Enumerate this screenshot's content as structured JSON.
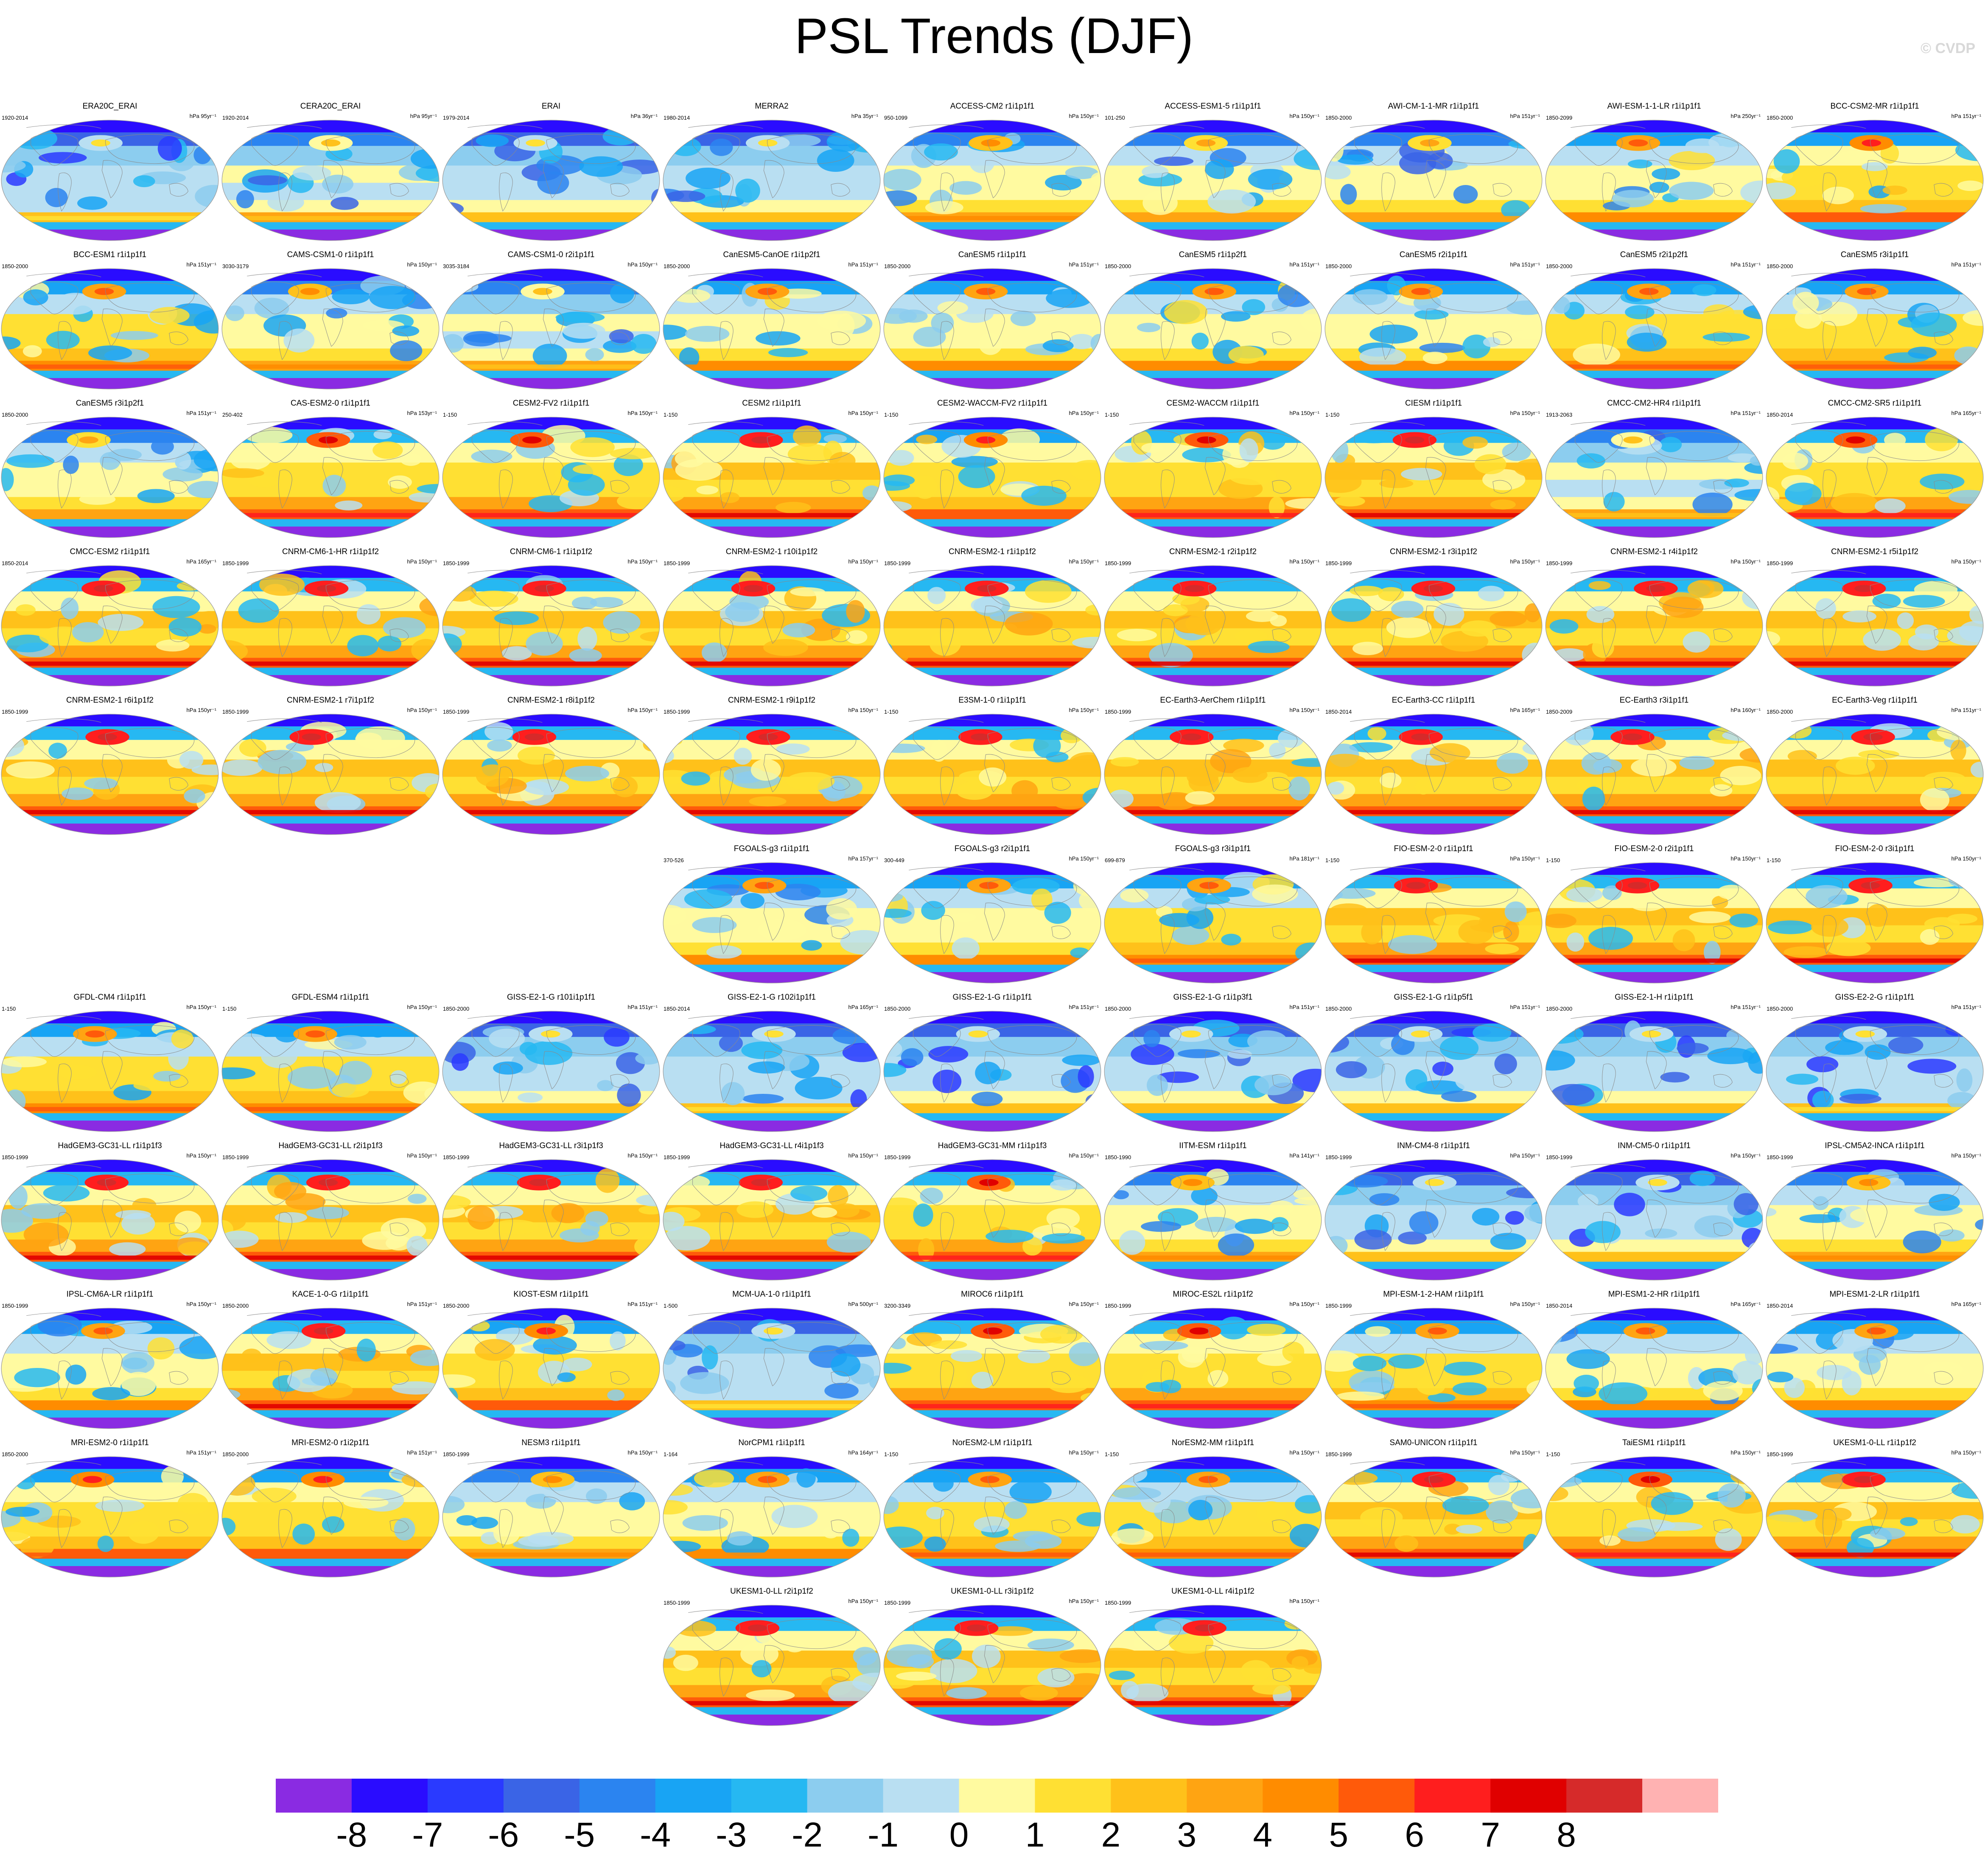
{
  "title": "PSL Trends (DJF)",
  "watermark": "© CVDP",
  "colorbar": {
    "colors": [
      "#8a2be2",
      "#2a0cff",
      "#2a3aff",
      "#3a64e6",
      "#2b84f0",
      "#18a4f4",
      "#26b8f2",
      "#8ccdef",
      "#b9dff2",
      "#fffaa0",
      "#ffe033",
      "#ffc11a",
      "#ffa412",
      "#ff8c00",
      "#ff5a0a",
      "#ff1e1e",
      "#e00000",
      "#d62a2a",
      "#ffb2b2"
    ],
    "ticks": [
      "-8",
      "-7",
      "-6",
      "-5",
      "-4",
      "-3",
      "-2",
      "-1",
      "0",
      "1",
      "2",
      "3",
      "4",
      "5",
      "6",
      "7",
      "8"
    ]
  },
  "rows": [
    [
      {
        "title": "ERA20C_ERAI",
        "period": "1920-2014",
        "units": "hPa 95yr⁻¹",
        "tint": -0.3
      },
      {
        "title": "CERA20C_ERAI",
        "period": "1920-2014",
        "units": "hPa 95yr⁻¹",
        "tint": -0.1
      },
      {
        "title": "ERAI",
        "period": "1979-2014",
        "units": "hPa 36yr⁻¹",
        "tint": -0.2
      },
      {
        "title": "MERRA2",
        "period": "1980-2014",
        "units": "hPa 35yr⁻¹",
        "tint": -0.2
      },
      {
        "title": "ACCESS-CM2 r1i1p1f1",
        "period": "950-1099",
        "units": "hPa 150yr⁻¹",
        "tint": 0.1
      },
      {
        "title": "ACCESS-ESM1-5 r1i1p1f1",
        "period": "101-250",
        "units": "hPa 150yr⁻¹",
        "tint": 0.0
      },
      {
        "title": "AWI-CM-1-1-MR r1i1p1f1",
        "period": "1850-2000",
        "units": "hPa 151yr⁻¹",
        "tint": 0.0
      },
      {
        "title": "AWI-ESM-1-1-LR r1i1p1f1",
        "period": "1850-2099",
        "units": "hPa 250yr⁻¹",
        "tint": 0.2
      },
      {
        "title": "BCC-CSM2-MR r1i1p1f1",
        "period": "1850-2000",
        "units": "hPa 151yr⁻¹",
        "tint": 0.4
      }
    ],
    [
      {
        "title": "BCC-ESM1 r1i1p1f1",
        "period": "1850-2000",
        "units": "hPa 151yr⁻¹",
        "tint": 0.3
      },
      {
        "title": "CAMS-CSM1-0 r1i1p1f1",
        "period": "3030-3179",
        "units": "hPa 150yr⁻¹",
        "tint": 0.1
      },
      {
        "title": "CAMS-CSM1-0 r2i1p1f1",
        "period": "3035-3184",
        "units": "hPa 150yr⁻¹",
        "tint": -0.1
      },
      {
        "title": "CanESM5-CanOE r1i1p2f1",
        "period": "1850-2000",
        "units": "hPa 151yr⁻¹",
        "tint": 0.2
      },
      {
        "title": "CanESM5 r1i1p1f1",
        "period": "1850-2000",
        "units": "hPa 151yr⁻¹",
        "tint": 0.2
      },
      {
        "title": "CanESM5 r1i1p2f1",
        "period": "1850-2000",
        "units": "hPa 151yr⁻¹",
        "tint": 0.2
      },
      {
        "title": "CanESM5 r2i1p1f1",
        "period": "1850-2000",
        "units": "hPa 151yr⁻¹",
        "tint": 0.2
      },
      {
        "title": "CanESM5 r2i1p2f1",
        "period": "1850-2000",
        "units": "hPa 151yr⁻¹",
        "tint": 0.3
      },
      {
        "title": "CanESM5 r3i1p1f1",
        "period": "1850-2000",
        "units": "hPa 151yr⁻¹",
        "tint": 0.3
      }
    ],
    [
      {
        "title": "CanESM5 r3i1p2f1",
        "period": "1850-2000",
        "units": "hPa 151yr⁻¹",
        "tint": 0.0
      },
      {
        "title": "CAS-ESM2-0 r1i1p1f1",
        "period": "250-402",
        "units": "hPa 153yr⁻¹",
        "tint": 0.5
      },
      {
        "title": "CESM2-FV2 r1i1p1f1",
        "period": "1-150",
        "units": "hPa 150yr⁻¹",
        "tint": 0.5
      },
      {
        "title": "CESM2 r1i1p1f1",
        "period": "1-150",
        "units": "hPa 150yr⁻¹",
        "tint": 0.6
      },
      {
        "title": "CESM2-WACCM-FV2 r1i1p1f1",
        "period": "1-150",
        "units": "hPa 150yr⁻¹",
        "tint": 0.4
      },
      {
        "title": "CESM2-WACCM r1i1p1f1",
        "period": "1-150",
        "units": "hPa 150yr⁻¹",
        "tint": 0.5
      },
      {
        "title": "CIESM r1i1p1f1",
        "period": "1-150",
        "units": "hPa 150yr⁻¹",
        "tint": 0.6
      },
      {
        "title": "CMCC-CM2-HR4 r1i1p1f1",
        "period": "1913-2063",
        "units": "hPa 151yr⁻¹",
        "tint": -0.1
      },
      {
        "title": "CMCC-CM2-SR5 r1i1p1f1",
        "period": "1850-2014",
        "units": "hPa 165yr⁻¹",
        "tint": 0.5
      }
    ],
    [
      {
        "title": "CMCC-ESM2 r1i1p1f1",
        "period": "1850-2014",
        "units": "hPa 165yr⁻¹",
        "tint": 0.6
      },
      {
        "title": "CNRM-CM6-1-HR r1i1p1f2",
        "period": "1850-1999",
        "units": "hPa 150yr⁻¹",
        "tint": 0.6
      },
      {
        "title": "CNRM-CM6-1 r1i1p1f2",
        "period": "1850-1999",
        "units": "hPa 150yr⁻¹",
        "tint": 0.6
      },
      {
        "title": "CNRM-ESM2-1 r10i1p1f2",
        "period": "1850-1999",
        "units": "hPa 150yr⁻¹",
        "tint": 0.6
      },
      {
        "title": "CNRM-ESM2-1 r1i1p1f2",
        "period": "1850-1999",
        "units": "hPa 150yr⁻¹",
        "tint": 0.6
      },
      {
        "title": "CNRM-ESM2-1 r2i1p1f2",
        "period": "1850-1999",
        "units": "hPa 150yr⁻¹",
        "tint": 0.6
      },
      {
        "title": "CNRM-ESM2-1 r3i1p1f2",
        "period": "1850-1999",
        "units": "hPa 150yr⁻¹",
        "tint": 0.6
      },
      {
        "title": "CNRM-ESM2-1 r4i1p1f2",
        "period": "1850-1999",
        "units": "hPa 150yr⁻¹",
        "tint": 0.6
      },
      {
        "title": "CNRM-ESM2-1 r5i1p1f2",
        "period": "1850-1999",
        "units": "hPa 150yr⁻¹",
        "tint": 0.6
      }
    ],
    [
      {
        "title": "CNRM-ESM2-1 r6i1p1f2",
        "period": "1850-1999",
        "units": "hPa 150yr⁻¹",
        "tint": 0.6
      },
      {
        "title": "CNRM-ESM2-1 r7i1p1f2",
        "period": "1850-1999",
        "units": "hPa 150yr⁻¹",
        "tint": 0.6
      },
      {
        "title": "CNRM-ESM2-1 r8i1p1f2",
        "period": "1850-1999",
        "units": "hPa 150yr⁻¹",
        "tint": 0.6
      },
      {
        "title": "CNRM-ESM2-1 r9i1p1f2",
        "period": "1850-1999",
        "units": "hPa 150yr⁻¹",
        "tint": 0.6
      },
      {
        "title": "E3SM-1-0 r1i1p1f1",
        "period": "1-150",
        "units": "hPa 150yr⁻¹",
        "tint": 0.6
      },
      {
        "title": "EC-Earth3-AerChem r1i1p1f1",
        "period": "1850-1999",
        "units": "hPa 150yr⁻¹",
        "tint": 0.6
      },
      {
        "title": "EC-Earth3-CC r1i1p1f1",
        "period": "1850-2014",
        "units": "hPa 165yr⁻¹",
        "tint": 0.6
      },
      {
        "title": "EC-Earth3 r3i1p1f1",
        "period": "1850-2009",
        "units": "hPa 160yr⁻¹",
        "tint": 0.6
      },
      {
        "title": "EC-Earth3-Veg r1i1p1f1",
        "period": "1850-2000",
        "units": "hPa 151yr⁻¹",
        "tint": 0.6
      }
    ],
    [
      null,
      null,
      null,
      {
        "title": "FGOALS-g3 r1i1p1f1",
        "period": "370-526",
        "units": "hPa 157yr⁻¹",
        "tint": 0.2
      },
      {
        "title": "FGOALS-g3 r2i1p1f1",
        "period": "300-449",
        "units": "hPa 150yr⁻¹",
        "tint": 0.2
      },
      {
        "title": "FGOALS-g3 r3i1p1f1",
        "period": "699-879",
        "units": "hPa 181yr⁻¹",
        "tint": 0.3
      },
      {
        "title": "FIO-ESM-2-0 r1i1p1f1",
        "period": "1-150",
        "units": "hPa 150yr⁻¹",
        "tint": 0.6
      },
      {
        "title": "FIO-ESM-2-0 r2i1p1f1",
        "period": "1-150",
        "units": "hPa 150yr⁻¹",
        "tint": 0.6
      },
      {
        "title": "FIO-ESM-2-0 r3i1p1f1",
        "period": "1-150",
        "units": "hPa 150yr⁻¹",
        "tint": 0.6
      }
    ],
    [
      {
        "title": "GFDL-CM4 r1i1p1f1",
        "period": "1-150",
        "units": "hPa 150yr⁻¹",
        "tint": 0.3
      },
      {
        "title": "GFDL-ESM4 r1i1p1f1",
        "period": "1-150",
        "units": "hPa 150yr⁻¹",
        "tint": 0.3
      },
      {
        "title": "GISS-E2-1-G r101i1p1f1",
        "period": "1850-2000",
        "units": "hPa 151yr⁻¹",
        "tint": -0.2
      },
      {
        "title": "GISS-E2-1-G r102i1p1f1",
        "period": "1850-2014",
        "units": "hPa 165yr⁻¹",
        "tint": -0.3
      },
      {
        "title": "GISS-E2-1-G r1i1p1f1",
        "period": "1850-2000",
        "units": "hPa 151yr⁻¹",
        "tint": -0.2
      },
      {
        "title": "GISS-E2-1-G r1i1p3f1",
        "period": "1850-2000",
        "units": "hPa 151yr⁻¹",
        "tint": -0.2
      },
      {
        "title": "GISS-E2-1-G r1i1p5f1",
        "period": "1850-2000",
        "units": "hPa 151yr⁻¹",
        "tint": -0.2
      },
      {
        "title": "GISS-E2-1-H r1i1p1f1",
        "period": "1850-2000",
        "units": "hPa 151yr⁻¹",
        "tint": -0.2
      },
      {
        "title": "GISS-E2-2-G r1i1p1f1",
        "period": "1850-2000",
        "units": "hPa 151yr⁻¹",
        "tint": -0.3
      }
    ],
    [
      {
        "title": "HadGEM3-GC31-LL r1i1p1f3",
        "period": "1850-1999",
        "units": "hPa 150yr⁻¹",
        "tint": 0.6
      },
      {
        "title": "HadGEM3-GC31-LL r2i1p1f3",
        "period": "1850-1999",
        "units": "hPa 150yr⁻¹",
        "tint": 0.6
      },
      {
        "title": "HadGEM3-GC31-LL r3i1p1f3",
        "period": "1850-1999",
        "units": "hPa 150yr⁻¹",
        "tint": 0.6
      },
      {
        "title": "HadGEM3-GC31-LL r4i1p1f3",
        "period": "1850-1999",
        "units": "hPa 150yr⁻¹",
        "tint": 0.6
      },
      {
        "title": "HadGEM3-GC31-MM r1i1p1f3",
        "period": "1850-1999",
        "units": "hPa 150yr⁻¹",
        "tint": 0.5
      },
      {
        "title": "IITM-ESM r1i1p1f1",
        "period": "1850-1990",
        "units": "hPa 141yr⁻¹",
        "tint": 0.1
      },
      {
        "title": "INM-CM4-8 r1i1p1f1",
        "period": "1850-1999",
        "units": "hPa 150yr⁻¹",
        "tint": -0.2
      },
      {
        "title": "INM-CM5-0 r1i1p1f1",
        "period": "1850-1999",
        "units": "hPa 150yr⁻¹",
        "tint": -0.2
      },
      {
        "title": "IPSL-CM5A2-INCA r1i1p1f1",
        "period": "1850-1999",
        "units": "hPa 150yr⁻¹",
        "tint": 0.1
      }
    ],
    [
      {
        "title": "IPSL-CM6A-LR r1i1p1f1",
        "period": "1850-1999",
        "units": "hPa 150yr⁻¹",
        "tint": 0.2
      },
      {
        "title": "KACE-1-0-G r1i1p1f1",
        "period": "1850-2000",
        "units": "hPa 151yr⁻¹",
        "tint": 0.6
      },
      {
        "title": "KIOST-ESM r1i1p1f1",
        "period": "1850-2000",
        "units": "hPa 151yr⁻¹",
        "tint": 0.4
      },
      {
        "title": "MCM-UA-1-0 r1i1p1f1",
        "period": "1-500",
        "units": "hPa 500yr⁻¹",
        "tint": -0.3
      },
      {
        "title": "MIROC6 r1i1p1f1",
        "period": "3200-3349",
        "units": "hPa 150yr⁻¹",
        "tint": 0.5
      },
      {
        "title": "MIROC-ES2L r1i1p1f2",
        "period": "1850-1999",
        "units": "hPa 150yr⁻¹",
        "tint": 0.5
      },
      {
        "title": "MPI-ESM-1-2-HAM r1i1p1f1",
        "period": "1850-1999",
        "units": "hPa 150yr⁻¹",
        "tint": 0.3
      },
      {
        "title": "MPI-ESM1-2-HR r1i1p1f1",
        "period": "1850-2014",
        "units": "hPa 165yr⁻¹",
        "tint": 0.2
      },
      {
        "title": "MPI-ESM1-2-LR r1i1p1f1",
        "period": "1850-2014",
        "units": "hPa 165yr⁻¹",
        "tint": 0.2
      }
    ],
    [
      {
        "title": "MRI-ESM2-0 r1i1p1f1",
        "period": "1850-2000",
        "units": "hPa 151yr⁻¹",
        "tint": 0.4
      },
      {
        "title": "MRI-ESM2-0 r1i2p1f1",
        "period": "1850-2000",
        "units": "hPa 151yr⁻¹",
        "tint": 0.4
      },
      {
        "title": "NESM3 r1i1p1f1",
        "period": "1850-1999",
        "units": "hPa 150yr⁻¹",
        "tint": 0.1
      },
      {
        "title": "NorCPM1 r1i1p1f1",
        "period": "1-164",
        "units": "hPa 164yr⁻¹",
        "tint": 0.2
      },
      {
        "title": "NorESM2-LM r1i1p1f1",
        "period": "1-150",
        "units": "hPa 150yr⁻¹",
        "tint": 0.3
      },
      {
        "title": "NorESM2-MM r1i1p1f1",
        "period": "1-150",
        "units": "hPa 150yr⁻¹",
        "tint": 0.3
      },
      {
        "title": "SAM0-UNICON r1i1p1f1",
        "period": "1850-1999",
        "units": "hPa 150yr⁻¹",
        "tint": 0.6
      },
      {
        "title": "TaiESM1 r1i1p1f1",
        "period": "1-150",
        "units": "hPa 150yr⁻¹",
        "tint": 0.5
      },
      {
        "title": "UKESM1-0-LL r1i1p1f2",
        "period": "1850-1999",
        "units": "hPa 150yr⁻¹",
        "tint": 0.6
      }
    ],
    [
      null,
      null,
      null,
      {
        "title": "UKESM1-0-LL r2i1p1f2",
        "period": "1850-1999",
        "units": "hPa 150yr⁻¹",
        "tint": 0.6
      },
      {
        "title": "UKESM1-0-LL r3i1p1f2",
        "period": "1850-1999",
        "units": "hPa 150yr⁻¹",
        "tint": 0.6
      },
      {
        "title": "UKESM1-0-LL r4i1p1f2",
        "period": "1850-1999",
        "units": "hPa 150yr⁻¹",
        "tint": 0.6
      }
    ]
  ]
}
